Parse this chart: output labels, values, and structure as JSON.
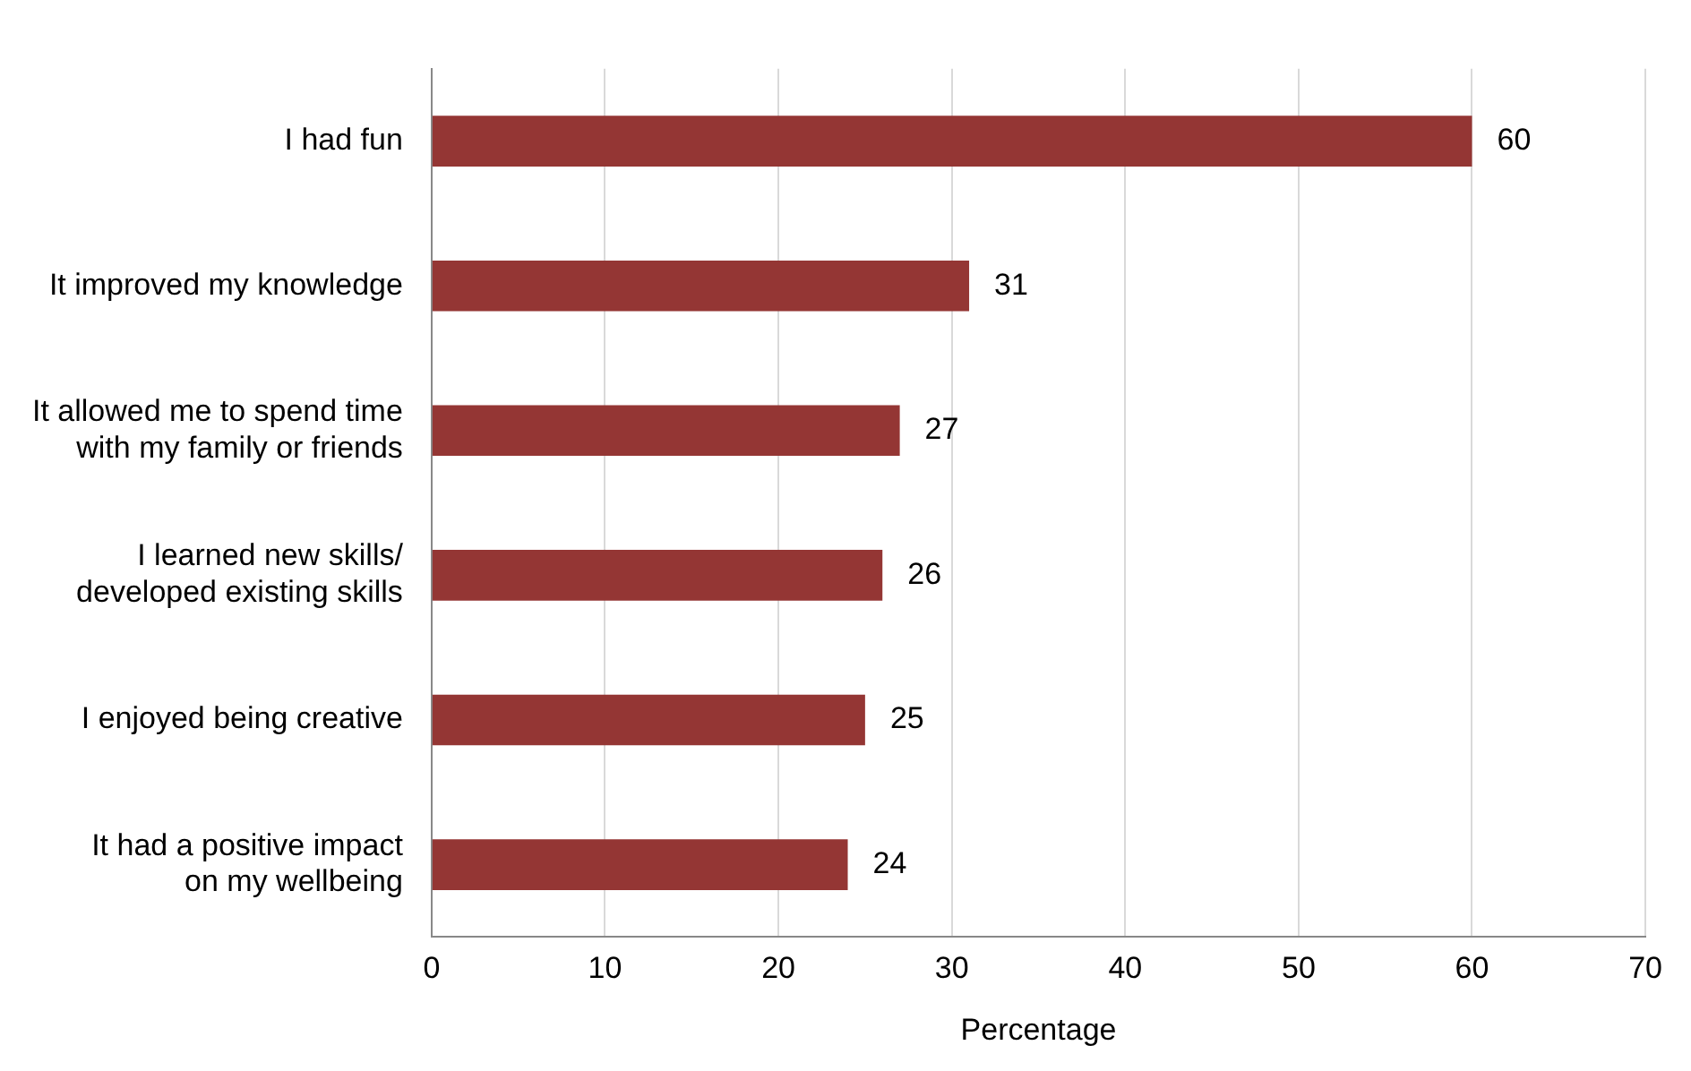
{
  "chart_data": {
    "type": "bar",
    "orientation": "horizontal",
    "xlabel": "Percentage",
    "categories": [
      "I had fun",
      "It improved my knowledge",
      "It allowed me to spend time\nwith my family or friends",
      "I learned new skills/\ndeveloped existing skills",
      "I enjoyed being creative",
      "It had a positive impact\non my wellbeing"
    ],
    "values": [
      60,
      31,
      27,
      26,
      25,
      24
    ],
    "color": "#943634",
    "data_labels": true,
    "xlim": [
      0,
      70
    ],
    "xticks": [
      0,
      10,
      20,
      30,
      40,
      50,
      60,
      70
    ],
    "grid": "x",
    "legend": false
  }
}
